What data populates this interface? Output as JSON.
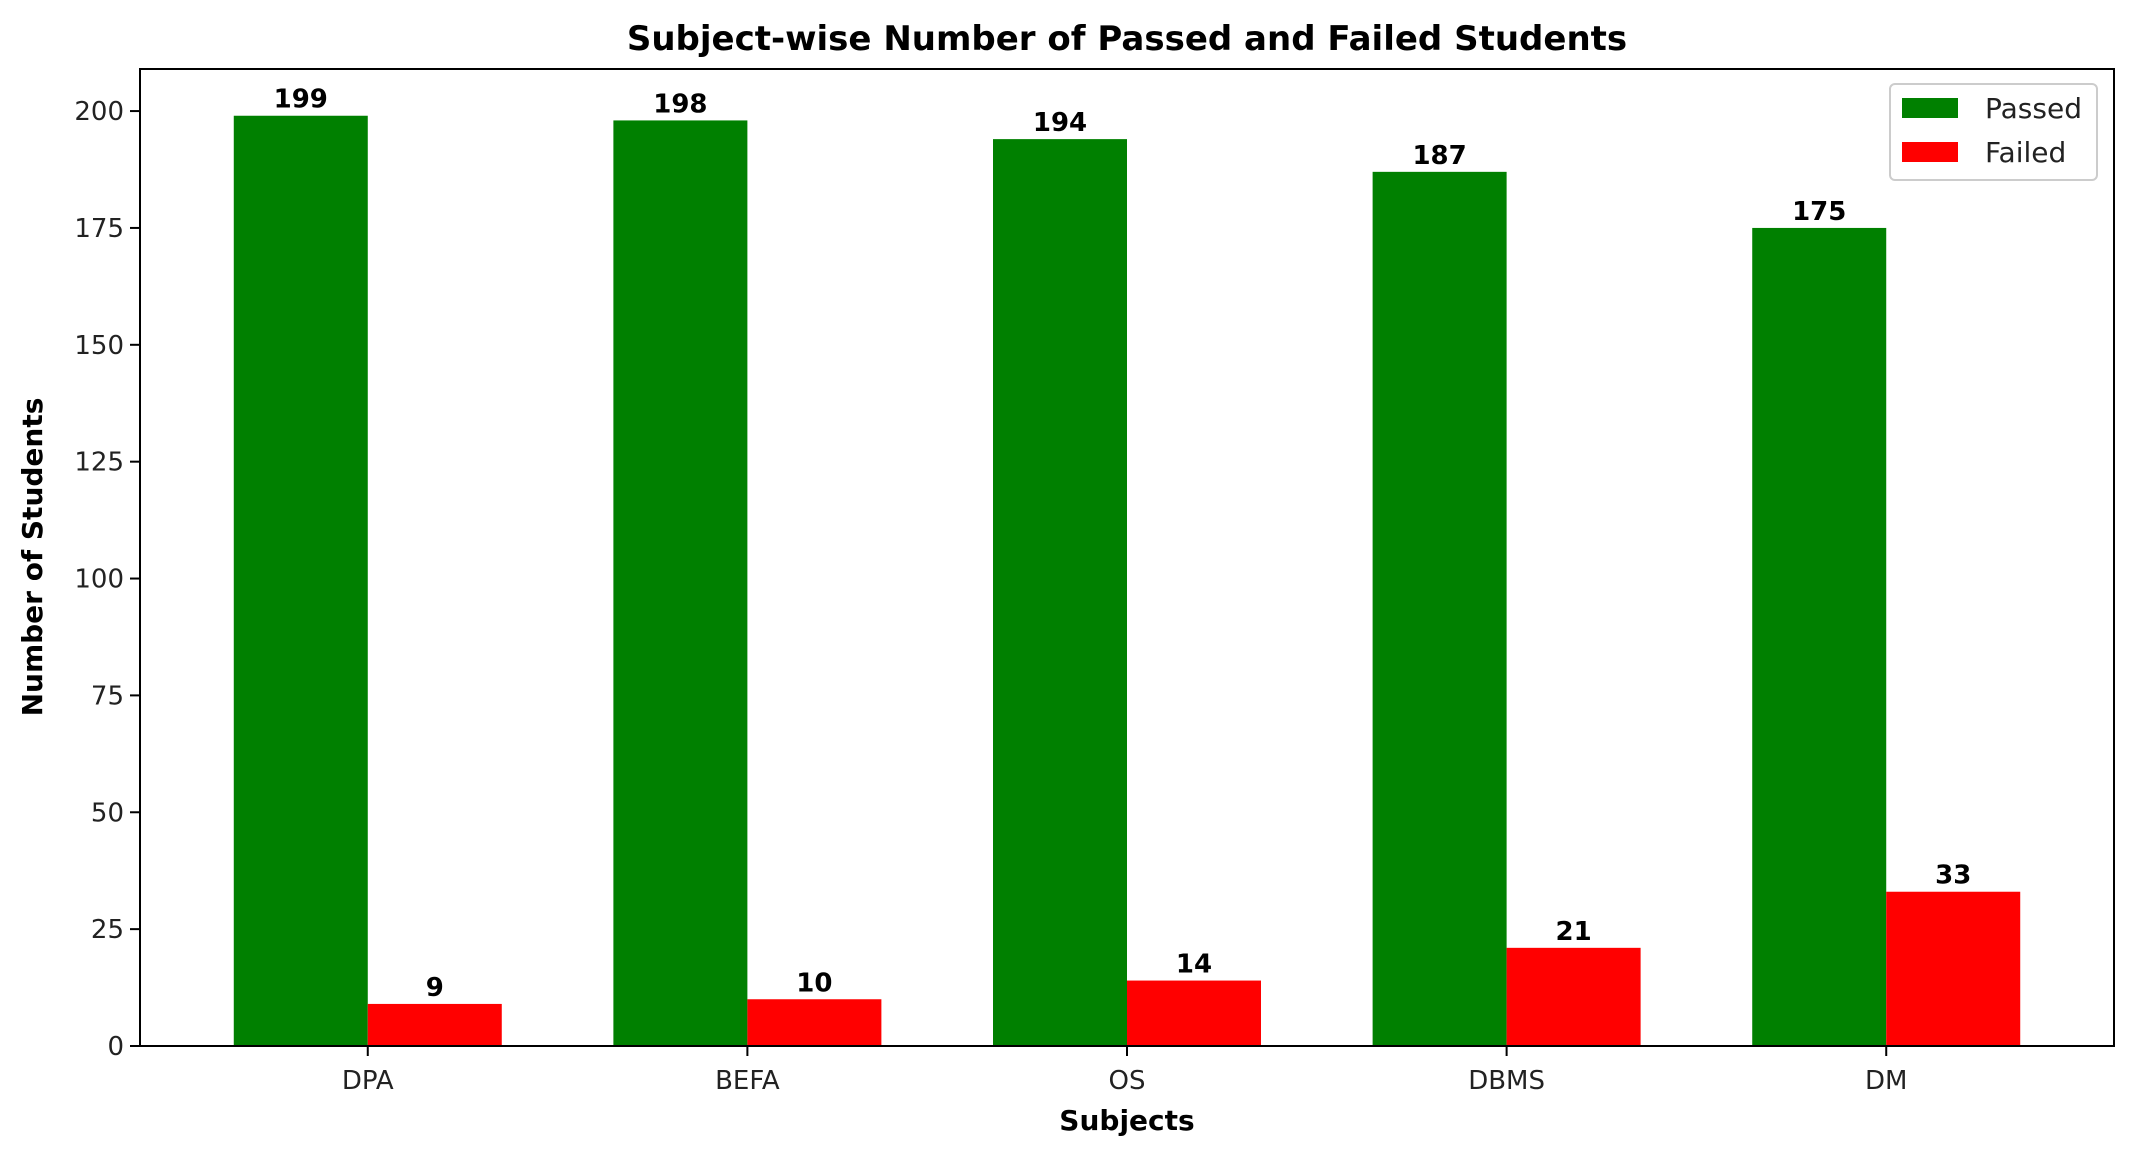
{
  "chart_data": {
    "type": "bar",
    "title": "Subject-wise Number of Passed and Failed Students",
    "xlabel": "Subjects",
    "ylabel": "Number of Students",
    "categories": [
      "DPA",
      "BEFA",
      "OS",
      "DBMS",
      "DM"
    ],
    "series": [
      {
        "name": "Passed",
        "color": "#008000",
        "values": [
          199,
          198,
          194,
          187,
          175
        ]
      },
      {
        "name": "Failed",
        "color": "#ff0000",
        "values": [
          9,
          10,
          14,
          21,
          33
        ]
      }
    ],
    "ylim": [
      0,
      209
    ],
    "yticks": [
      0,
      25,
      50,
      75,
      100,
      125,
      150,
      175,
      200
    ],
    "grid": false,
    "legend_position": "top-right"
  }
}
